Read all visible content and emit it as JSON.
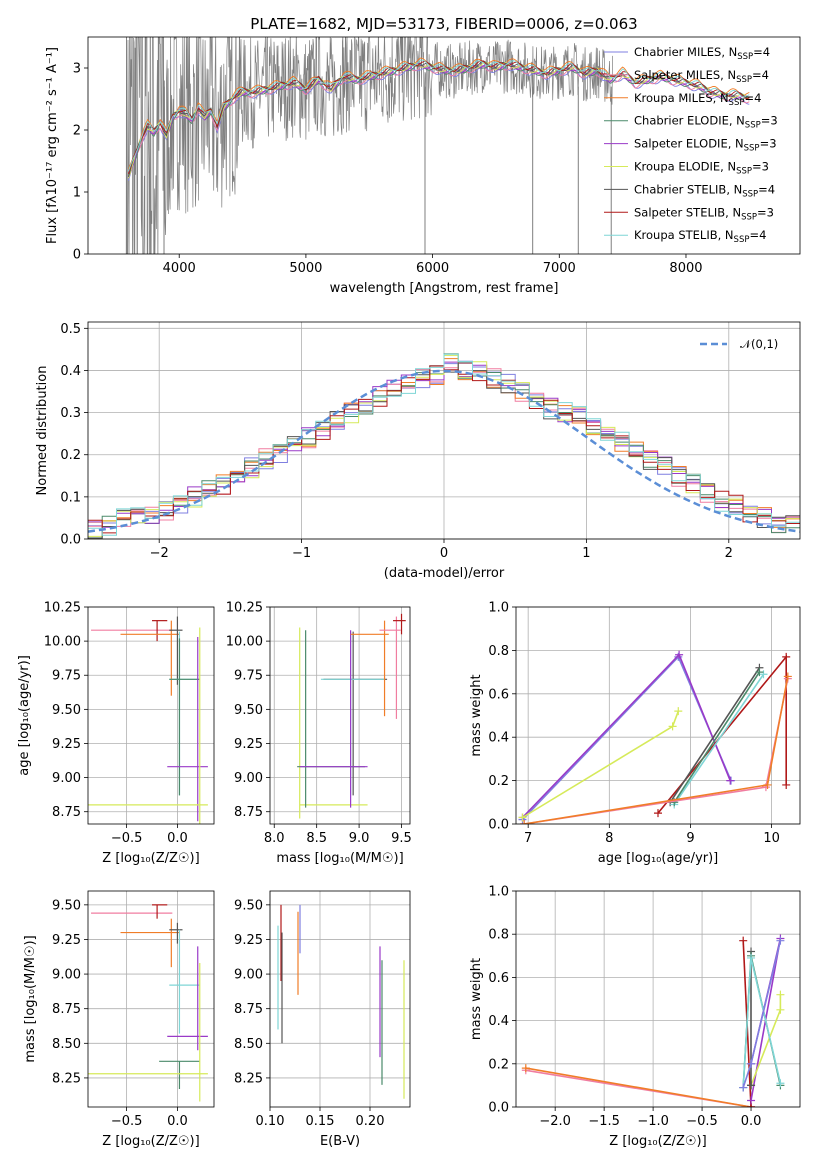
{
  "title": "PLATE=1682, MJD=53173, FIBERID=0006, z=0.063",
  "colors": {
    "Chabrier MILES": "#7f7fe0",
    "Salpeter MILES": "#f07da0",
    "Kroupa MILES": "#f07d28",
    "Chabrier ELODIE": "#4a8a6a",
    "Salpeter ELODIE": "#9a3ac8",
    "Kroupa ELODIE": "#d6ea5a",
    "Chabrier STELIB": "#555555",
    "Salpeter STELIB": "#b01818",
    "Kroupa STELIB": "#7fd6d6",
    "data": "#7f7f7f",
    "normal": "#5b8ed6"
  },
  "chart_data": [
    {
      "type": "line",
      "title": "PLATE=1682, MJD=53173, FIBERID=0006, z=0.063",
      "xlabel": "wavelength [Angstrom, rest frame]",
      "ylabel": "Flux [fλ10⁻¹⁷ erg cm⁻² s⁻¹ A⁻¹]",
      "xlim": [
        3280,
        8900
      ],
      "ylim": [
        0,
        3.5
      ],
      "xticks": [
        4000,
        5000,
        6000,
        7000,
        8000
      ],
      "yticks": [
        0,
        1,
        2,
        3
      ],
      "legend": [
        "Chabrier MILES, N_SSP=4",
        "Salpeter MILES, N_SSP=4",
        "Kroupa MILES, N_SSP=4",
        "Chabrier ELODIE, N_SSP=3",
        "Salpeter ELODIE, N_SSP=3",
        "Kroupa ELODIE, N_SSP=3",
        "Chabrier STELIB, N_SSP=4",
        "Salpeter STELIB, N_SSP=3",
        "Kroupa STELIB, N_SSP=4"
      ],
      "legend_loc": "upper right",
      "grid": false,
      "model_x": [
        3600,
        3650,
        3700,
        3750,
        3800,
        3850,
        3900,
        3950,
        4000,
        4050,
        4100,
        4150,
        4200,
        4250,
        4300,
        4350,
        4400,
        4450,
        4500,
        4600,
        4700,
        4800,
        4900,
        5000,
        5100,
        5200,
        5300,
        5400,
        5500,
        5600,
        5700,
        5800,
        5900,
        6000,
        6100,
        6200,
        6300,
        6400,
        6500,
        6600,
        6700,
        6800,
        6900,
        7000,
        7100,
        7200,
        7300,
        7400,
        7500,
        7600,
        7700,
        7800,
        7900,
        8000,
        8100,
        8200,
        8300,
        8400,
        8500
      ],
      "model_y": [
        1.25,
        1.55,
        1.85,
        2.05,
        1.95,
        2.1,
        1.9,
        2.2,
        2.3,
        2.25,
        2.15,
        2.35,
        2.2,
        2.3,
        2.05,
        2.35,
        2.45,
        2.55,
        2.6,
        2.6,
        2.65,
        2.7,
        2.75,
        2.65,
        2.8,
        2.65,
        2.85,
        2.8,
        2.85,
        2.9,
        2.95,
        3.0,
        3.05,
        3.0,
        2.95,
        2.95,
        3.0,
        3.05,
        3.0,
        3.05,
        3.0,
        2.95,
        2.9,
        2.95,
        3.0,
        2.9,
        2.95,
        2.8,
        2.9,
        2.75,
        2.8,
        2.85,
        2.8,
        2.75,
        2.7,
        2.6,
        2.55,
        2.55,
        2.5
      ],
      "data_range": [
        3580,
        7420
      ],
      "drop_lines_x": [
        3880,
        5940,
        6790,
        7150,
        7410
      ]
    },
    {
      "type": "step",
      "xlabel": "(data-model)/error",
      "ylabel": "Normed distribution",
      "xlim": [
        -2.5,
        2.5
      ],
      "ylim": [
        0,
        0.515
      ],
      "xticks": [
        -2,
        -1,
        0,
        1,
        2
      ],
      "yticks": [
        0.0,
        0.1,
        0.2,
        0.3,
        0.4,
        0.5
      ],
      "grid": true,
      "legend": [
        "𝒩(0,1)"
      ],
      "legend_loc": "upper right",
      "bin_edges_start": -2.5,
      "bin_width": 0.1,
      "hist_base": [
        0.02,
        0.03,
        0.05,
        0.06,
        0.06,
        0.07,
        0.08,
        0.1,
        0.12,
        0.13,
        0.15,
        0.17,
        0.19,
        0.2,
        0.22,
        0.24,
        0.26,
        0.28,
        0.3,
        0.32,
        0.34,
        0.36,
        0.37,
        0.38,
        0.39,
        0.42,
        0.4,
        0.4,
        0.38,
        0.37,
        0.35,
        0.33,
        0.31,
        0.3,
        0.29,
        0.27,
        0.25,
        0.23,
        0.21,
        0.19,
        0.17,
        0.15,
        0.13,
        0.11,
        0.09,
        0.08,
        0.06,
        0.05,
        0.04,
        0.03
      ]
    },
    {
      "type": "errorbar",
      "xlabel": "Z [log₁₀(Z/Z☉)]",
      "ylabel": "age  [log₁₀(age/yr)]",
      "xlim": [
        -0.88,
        0.36
      ],
      "ylim": [
        8.66,
        10.25
      ],
      "xticks": [
        -0.5,
        0.0,
        0.5
      ],
      "yticks": [
        8.75,
        9.0,
        9.25,
        9.5,
        9.75,
        10.0,
        10.25
      ],
      "grid": true,
      "points": [
        {
          "series": "Salpeter MILES",
          "x": -0.25,
          "y": 10.08,
          "xerr": [
            0.6,
            0.2
          ],
          "yerr": [
            0,
            0
          ]
        },
        {
          "series": "Salpeter STELIB",
          "x": -0.2,
          "y": 10.15,
          "xerr": [
            0.05,
            0.1
          ],
          "yerr": [
            0.15,
            0
          ]
        },
        {
          "series": "Kroupa MILES",
          "x": -0.06,
          "y": 10.05,
          "xerr": [
            0.5,
            0.08
          ],
          "yerr": [
            0.45,
            0.1
          ]
        },
        {
          "series": "Chabrier STELIB",
          "x": 0.0,
          "y": 10.08,
          "xerr": [
            0.08,
            0.05
          ],
          "yerr": [
            0.4,
            0.1
          ]
        },
        {
          "series": "Kroupa STELIB",
          "x": 0.02,
          "y": 9.72,
          "xerr": [
            0.1,
            0.2
          ],
          "yerr": [
            0.85,
            0.35
          ]
        },
        {
          "series": "Chabrier ELODIE",
          "x": 0.02,
          "y": 9.72,
          "xerr": [
            0.1,
            0.2
          ],
          "yerr": [
            0.85,
            0.3
          ]
        },
        {
          "series": "Salpeter ELODIE",
          "x": 0.2,
          "y": 9.08,
          "xerr": [
            0.3,
            0.1
          ],
          "yerr": [
            0.4,
            0.95
          ]
        },
        {
          "series": "Kroupa ELODIE",
          "x": 0.22,
          "y": 8.8,
          "xerr": [
            1.1,
            0.08
          ],
          "yerr": [
            0.15,
            1.3
          ]
        }
      ]
    },
    {
      "type": "errorbar",
      "xlabel": "mass [log₁₀(M/M☉)]",
      "xlim": [
        7.95,
        9.6
      ],
      "ylim": [
        8.66,
        10.25
      ],
      "xticks": [
        8.0,
        8.5,
        9.0,
        9.5
      ],
      "yticks": [
        8.75,
        9.0,
        9.25,
        9.5,
        9.75,
        10.0,
        10.25
      ],
      "grid": true,
      "points": [
        {
          "series": "Kroupa ELODIE",
          "x": 8.3,
          "y": 8.8,
          "xerr": [
            0,
            0.8
          ],
          "yerr": [
            0.1,
            1.3
          ]
        },
        {
          "series": "Chabrier ELODIE",
          "x": 8.37,
          "y": 9.08,
          "xerr": [
            0.1,
            0.7
          ],
          "yerr": [
            0.3,
            1.0
          ]
        },
        {
          "series": "Chabrier STELIB",
          "x": 8.93,
          "y": 9.72,
          "xerr": [
            0.35,
            0.4
          ],
          "yerr": [
            0.85,
            0.35
          ]
        },
        {
          "series": "Kroupa STELIB",
          "x": 8.9,
          "y": 9.72,
          "xerr": [
            0.35,
            0.4
          ],
          "yerr": [
            0.85,
            0.35
          ]
        },
        {
          "series": "Salpeter ELODIE",
          "x": 8.9,
          "y": 9.08,
          "xerr": [
            0.6,
            0.2
          ],
          "yerr": [
            0.3,
            1.0
          ]
        },
        {
          "series": "Kroupa MILES",
          "x": 9.3,
          "y": 10.05,
          "xerr": [
            0.4,
            0.05
          ],
          "yerr": [
            0.6,
            0.1
          ]
        },
        {
          "series": "Salpeter MILES",
          "x": 9.44,
          "y": 10.08,
          "xerr": [
            0.2,
            0.05
          ],
          "yerr": [
            0.65,
            0.1
          ]
        },
        {
          "series": "Salpeter STELIB",
          "x": 9.5,
          "y": 10.15,
          "xerr": [
            0.1,
            0.05
          ],
          "yerr": [
            0.1,
            0.05
          ]
        }
      ]
    },
    {
      "type": "line",
      "xlabel": "age  [log₁₀(age/yr)]",
      "ylabel": "mass weight",
      "xlim": [
        6.85,
        10.35
      ],
      "ylim": [
        0.0,
        1.0
      ],
      "xticks": [
        7,
        8,
        9,
        10
      ],
      "yticks": [
        0.0,
        0.2,
        0.4,
        0.6,
        0.8,
        1.0
      ],
      "grid": true,
      "series": [
        {
          "name": "Chabrier MILES",
          "x": [
            6.93,
            8.85,
            9.5
          ],
          "y": [
            0.02,
            0.77,
            0.2
          ]
        },
        {
          "name": "Salpeter ELODIE",
          "x": [
            6.93,
            8.86,
            9.49
          ],
          "y": [
            0.03,
            0.78,
            0.2
          ]
        },
        {
          "name": "Kroupa ELODIE",
          "x": [
            6.93,
            8.78,
            8.85
          ],
          "y": [
            0.03,
            0.45,
            0.52
          ]
        },
        {
          "name": "Salpeter STELIB",
          "x": [
            8.6,
            10.18,
            10.18
          ],
          "y": [
            0.05,
            0.77,
            0.18
          ]
        },
        {
          "name": "Chabrier STELIB",
          "x": [
            8.75,
            9.85
          ],
          "y": [
            0.1,
            0.72
          ]
        },
        {
          "name": "Kroupa STELIB",
          "x": [
            8.8,
            9.9
          ],
          "y": [
            0.09,
            0.69
          ]
        },
        {
          "name": "Chabrier ELODIE",
          "x": [
            8.8,
            9.85
          ],
          "y": [
            0.1,
            0.7
          ]
        },
        {
          "name": "Salpeter MILES",
          "x": [
            6.95,
            9.93,
            10.2
          ],
          "y": [
            0.0,
            0.17,
            0.67
          ]
        },
        {
          "name": "Kroupa MILES",
          "x": [
            6.95,
            9.95,
            10.2
          ],
          "y": [
            0.0,
            0.18,
            0.68
          ]
        }
      ]
    },
    {
      "type": "errorbar",
      "xlabel": "Z [log₁₀(Z/Z☉)]",
      "ylabel": "mass [log₁₀(M/M☉)]",
      "xlim": [
        -0.88,
        0.36
      ],
      "ylim": [
        8.04,
        9.6
      ],
      "xticks": [
        -0.5,
        0.0,
        0.5
      ],
      "yticks": [
        8.25,
        8.5,
        8.75,
        9.0,
        9.25,
        9.5
      ],
      "grid": true,
      "points": [
        {
          "series": "Salpeter MILES",
          "x": -0.25,
          "y": 9.44,
          "xerr": [
            0.6,
            0.2
          ],
          "yerr": [
            0,
            0
          ]
        },
        {
          "series": "Salpeter STELIB",
          "x": -0.2,
          "y": 9.5,
          "xerr": [
            0.05,
            0.1
          ],
          "yerr": [
            0.1,
            0
          ]
        },
        {
          "series": "Kroupa MILES",
          "x": -0.06,
          "y": 9.3,
          "xerr": [
            0.5,
            0.08
          ],
          "yerr": [
            0.25,
            0.1
          ]
        },
        {
          "series": "Chabrier STELIB",
          "x": 0.0,
          "y": 9.32,
          "xerr": [
            0.08,
            0.05
          ],
          "yerr": [
            0.1,
            0.05
          ]
        },
        {
          "series": "Kroupa STELIB",
          "x": 0.02,
          "y": 8.92,
          "xerr": [
            0.1,
            0.2
          ],
          "yerr": [
            0.35,
            0.4
          ]
        },
        {
          "series": "Chabrier ELODIE",
          "x": 0.02,
          "y": 8.37,
          "xerr": [
            0.2,
            0.2
          ],
          "yerr": [
            0.2,
            0.0
          ]
        },
        {
          "series": "Salpeter ELODIE",
          "x": 0.2,
          "y": 8.55,
          "xerr": [
            0.3,
            0.1
          ],
          "yerr": [
            0.1,
            0.65
          ]
        },
        {
          "series": "Kroupa ELODIE",
          "x": 0.22,
          "y": 8.28,
          "xerr": [
            1.1,
            0.08
          ],
          "yerr": [
            0.2,
            0.8
          ]
        }
      ]
    },
    {
      "type": "errorbar",
      "xlabel": "E(B-V)",
      "xlim": [
        0.1,
        0.24
      ],
      "ylim": [
        8.04,
        9.6
      ],
      "xticks": [
        0.1,
        0.15,
        0.2
      ],
      "yticks": [
        8.25,
        8.5,
        8.75,
        9.0,
        9.25,
        9.5
      ],
      "grid": true,
      "points": [
        {
          "series": "Kroupa STELIB",
          "x": 0.108,
          "y": 8.95,
          "yerr": [
            0.35,
            0.4
          ]
        },
        {
          "series": "Salpeter STELIB",
          "x": 0.111,
          "y": 9.2,
          "yerr": [
            0.25,
            0.3
          ]
        },
        {
          "series": "Chabrier STELIB",
          "x": 0.112,
          "y": 9.0,
          "yerr": [
            0.5,
            0.3
          ]
        },
        {
          "series": "Kroupa MILES",
          "x": 0.128,
          "y": 9.25,
          "yerr": [
            0.4,
            0.2
          ]
        },
        {
          "series": "Chabrier MILES",
          "x": 0.13,
          "y": 9.35,
          "yerr": [
            0.2,
            0.15
          ]
        },
        {
          "series": "Salpeter ELODIE",
          "x": 0.21,
          "y": 8.85,
          "yerr": [
            0.45,
            0.35
          ]
        },
        {
          "series": "Chabrier ELODIE",
          "x": 0.212,
          "y": 8.7,
          "yerr": [
            0.5,
            0.4
          ]
        },
        {
          "series": "Kroupa ELODIE",
          "x": 0.234,
          "y": 8.6,
          "yerr": [
            0.5,
            0.5
          ]
        }
      ]
    },
    {
      "type": "line",
      "xlabel": "Z [log₁₀(Z/Z☉)]",
      "ylabel": "mass weight",
      "xlim": [
        -2.4,
        0.5
      ],
      "ylim": [
        0.0,
        1.0
      ],
      "xticks": [
        -2.0,
        -1.5,
        -1.0,
        -0.5,
        0.0
      ],
      "yticks": [
        0.0,
        0.2,
        0.4,
        0.6,
        0.8,
        1.0
      ],
      "grid": true,
      "series": [
        {
          "name": "Salpeter MILES",
          "x": [
            -2.3,
            0.0
          ],
          "y": [
            0.17,
            0.0
          ]
        },
        {
          "name": "Kroupa MILES",
          "x": [
            -2.3,
            0.0
          ],
          "y": [
            0.18,
            0.0
          ]
        },
        {
          "name": "Salpeter STELIB",
          "x": [
            -0.08,
            0.0,
            0.0
          ],
          "y": [
            0.77,
            0.0,
            0.0
          ]
        },
        {
          "name": "Salpeter ELODIE",
          "x": [
            0.0,
            0.3,
            0.0
          ],
          "y": [
            0.2,
            0.78,
            0.03
          ]
        },
        {
          "name": "Kroupa ELODIE",
          "x": [
            0.0,
            0.3,
            0.3
          ],
          "y": [
            0.1,
            0.45,
            0.52
          ]
        },
        {
          "name": "Chabrier STELIB",
          "x": [
            0.0,
            0.0,
            0.0
          ],
          "y": [
            0.1,
            0.72,
            0.1
          ]
        },
        {
          "name": "Chabrier ELODIE",
          "x": [
            -0.08,
            0.0,
            0.3
          ],
          "y": [
            0.09,
            0.7,
            0.1
          ]
        },
        {
          "name": "Kroupa STELIB",
          "x": [
            -0.08,
            0.0,
            0.3
          ],
          "y": [
            0.09,
            0.69,
            0.11
          ]
        },
        {
          "name": "Chabrier MILES",
          "x": [
            -0.08,
            0.0,
            0.3
          ],
          "y": [
            0.09,
            0.2,
            0.77
          ]
        }
      ]
    }
  ]
}
